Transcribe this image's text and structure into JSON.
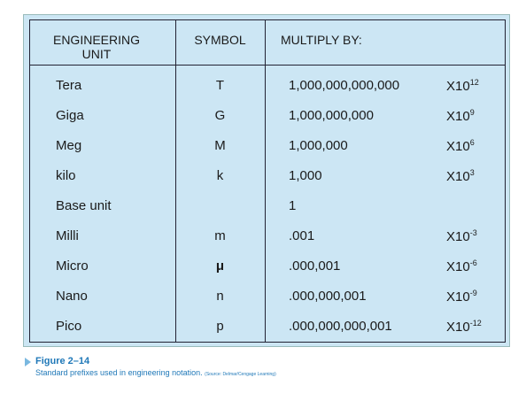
{
  "table": {
    "header": [
      "ENGINEERING UNIT",
      "SYMBOL",
      "MULTIPLY BY:"
    ],
    "rows": [
      {
        "unit": "Tera",
        "symbol": "T",
        "multiplier": "1,000,000,000,000",
        "base": "X10",
        "exp": "12"
      },
      {
        "unit": "Giga",
        "symbol": "G",
        "multiplier": "1,000,000,000",
        "base": "X10",
        "exp": "9"
      },
      {
        "unit": "Meg",
        "symbol": "M",
        "multiplier": "1,000,000",
        "base": "X10",
        "exp": "6"
      },
      {
        "unit": "kilo",
        "symbol": "k",
        "multiplier": "1,000",
        "base": "X10",
        "exp": "3"
      },
      {
        "unit": "Base unit",
        "multiplier": "1"
      },
      {
        "unit": "Milli",
        "symbol": "m",
        "multiplier": ".001",
        "base": "X10",
        "exp": "-3"
      },
      {
        "unit": "Micro",
        "symbol": "μ",
        "multiplier": ".000,001",
        "base": "X10",
        "exp": "-6"
      },
      {
        "unit": "Nano",
        "symbol": "n",
        "multiplier": ".000,000,001",
        "base": "X10",
        "exp": "-9"
      },
      {
        "unit": "Pico",
        "symbol": "p",
        "multiplier": ".000,000,000,001",
        "base": "X10",
        "exp": "-12"
      }
    ]
  },
  "caption": {
    "figure": "Figure 2–14",
    "text": "Standard prefixes used in engineering notation.",
    "source": "(Source: Delmar/Cengage Learning)"
  }
}
